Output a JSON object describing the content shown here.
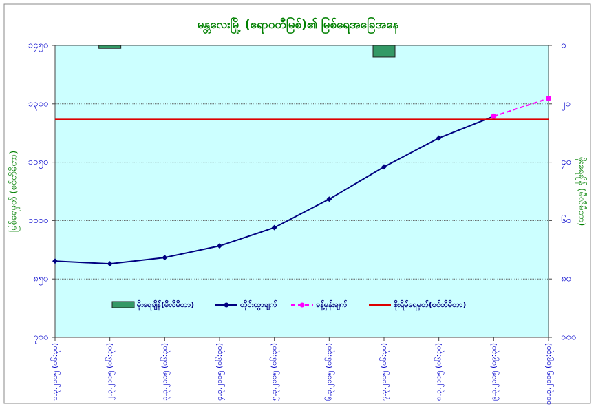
{
  "chart_data": {
    "type": "line",
    "title": "မန္တလေးမြို့ (ဧရာဝတီမြစ်)၏ မြစ်ရေအခြေအနေ",
    "y_label": "မြစ်ရေမှတ် (စင်တီမီတာ)",
    "y2_label": "မိုးရေချိန် (မီလီမီတာ)",
    "categories": [
      "၁.၃.၂၀၁၅ (၀၆:၃၀)",
      "၂.၃.၂၀၁၅ (၀၆:၃၀)",
      "၃.၃.၂၀၁၅ (၀၆:၃၀)",
      "၄.၃.၂၀၁၅ (၀၆:၃၀)",
      "၅.၃.၂၀၁၅ (၀၆:၃၀)",
      "၆.၃.၂၀၁၅ (၀၆:၃၀)",
      "၇.၃.၂၀၁၅ (၀၆:၃၀)",
      "၈.၃.၂၀၁၅ (၀၆:၃၀)",
      "၉.၃.၂၀၁၅ (၀၉:၃၀)",
      "၁၀.၃.၂၀၁၅ (၀၉:၃၀)"
    ],
    "ylim": [
      700,
      1450
    ],
    "yticks": [
      {
        "value": 700,
        "label": "၇၀၀"
      },
      {
        "value": 850,
        "label": "၈၅၀"
      },
      {
        "value": 1000,
        "label": "၁၀၀၀"
      },
      {
        "value": 1150,
        "label": "၁၁၅၀"
      },
      {
        "value": 1300,
        "label": "၁၃၀၀"
      },
      {
        "value": 1450,
        "label": "၁၄၅၀"
      }
    ],
    "y2lim": [
      100,
      0
    ],
    "y2ticks": [
      {
        "value": 0,
        "label": "၀"
      },
      {
        "value": 20,
        "label": "၂၀"
      },
      {
        "value": 40,
        "label": "၄၀"
      },
      {
        "value": 60,
        "label": "၆၀"
      },
      {
        "value": 80,
        "label": "၈၀"
      },
      {
        "value": 100,
        "label": "၁၀၀"
      }
    ],
    "grid": true,
    "series": [
      {
        "name": "မိုးရေချိန်(မီလီမီတာ)",
        "type": "bar",
        "axis": "y2",
        "color": "#339966",
        "values": [
          null,
          1,
          null,
          null,
          null,
          null,
          4,
          null,
          null,
          null
        ]
      },
      {
        "name": "တိုင်းထွာချက်",
        "color": "#000080",
        "values": [
          896,
          889,
          905,
          935,
          982,
          1055,
          1138,
          1212,
          1268,
          null
        ]
      },
      {
        "name": "ခန့်မှန်းချက်",
        "color": "#ff00ff",
        "dashed": true,
        "values": [
          null,
          null,
          null,
          null,
          null,
          null,
          null,
          null,
          1268,
          1314
        ]
      },
      {
        "name": "စိုးရိမ်ရေမှတ်(စင်တီမီတာ)",
        "color": "#dd0000",
        "values": [
          1260,
          1260,
          1260,
          1260,
          1260,
          1260,
          1260,
          1260,
          1260,
          1260
        ]
      }
    ]
  }
}
